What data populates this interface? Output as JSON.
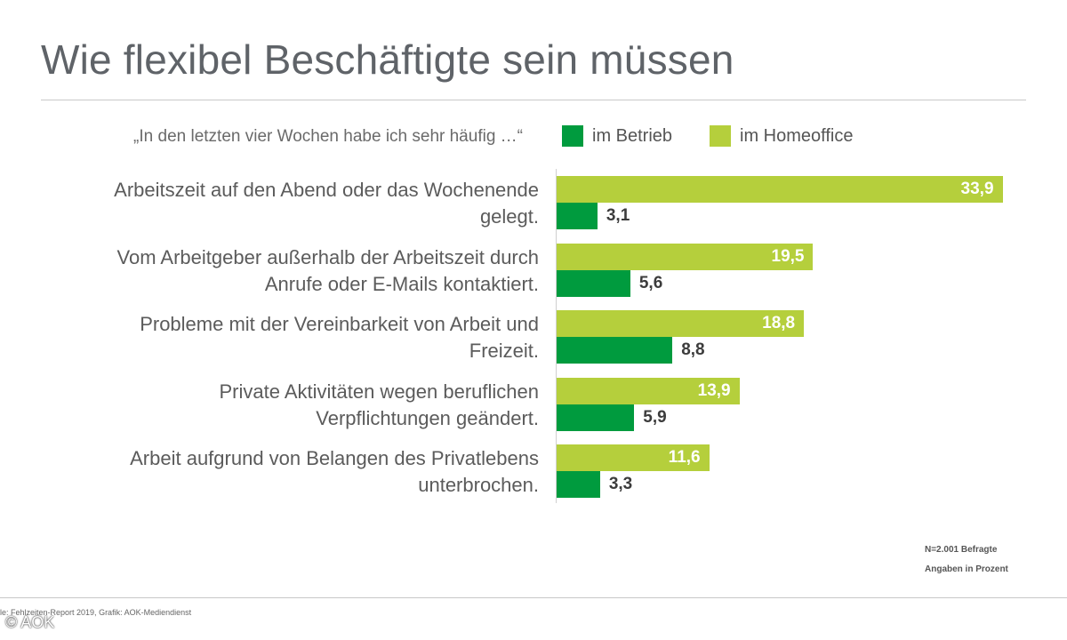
{
  "chart_data": {
    "type": "bar",
    "orientation": "horizontal",
    "title": "Wie flexibel Beschäftigte sein müssen",
    "subtitle": "„In den letzten vier Wochen habe ich sehr häufig …“",
    "categories": [
      [
        "Arbeitszeit auf den Abend oder das Wochenende",
        "gelegt."
      ],
      [
        "Vom Arbeitgeber außerhalb der Arbeitszeit durch",
        "Anrufe oder E-Mails kontaktiert."
      ],
      [
        "Probleme mit der Vereinbarkeit von Arbeit und",
        "Freizeit."
      ],
      [
        "Private Aktivitäten wegen beruflichen",
        "Verpflichtungen geändert."
      ],
      [
        "Arbeit aufgrund von Belangen des Privatlebens",
        "unterbrochen."
      ]
    ],
    "series": [
      {
        "name": "im Homeoffice",
        "color": "#b5cf3c",
        "values": [
          33.9,
          19.5,
          18.8,
          13.9,
          11.6
        ],
        "labels": [
          "33,9",
          "19,5",
          "18,8",
          "13,9",
          "11,6"
        ]
      },
      {
        "name": "im Betrieb",
        "color": "#009b3e",
        "values": [
          3.1,
          5.6,
          8.8,
          5.9,
          3.3
        ],
        "labels": [
          "3,1",
          "5,6",
          "8,8",
          "5,9",
          "3,3"
        ]
      }
    ],
    "xlim": [
      0,
      34
    ],
    "legend_position": "top",
    "notes": [
      "N=2.001 Befragte",
      "Angaben in Prozent"
    ]
  },
  "footer": {
    "source": "le: Fehlzeiten-Report 2019, Grafik: AOK-Mediendienst",
    "copyright": "© AOK"
  }
}
